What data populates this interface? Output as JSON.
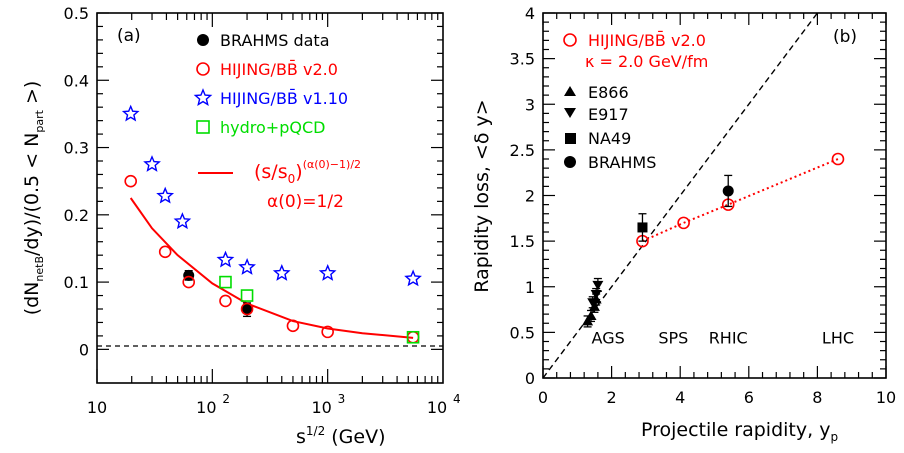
{
  "chart_data": [
    {
      "type": "scatter",
      "panel_label": "(a)",
      "xlabel": "s^{1/2} (GeV)",
      "xlabel_base": "s",
      "xlabel_sup": "1/2",
      "xlabel_unit": " (GeV)",
      "ylabel": "(dN_netB/dy)/(0.5 < N_part >)",
      "ylabel_parts": [
        "(dN",
        "netB",
        "/dy)/(0.5 < N",
        "part",
        " >)"
      ],
      "xscale": "log",
      "xlim": [
        10,
        10000
      ],
      "ylim": [
        -0.05,
        0.5
      ],
      "xticks": [
        {
          "value": 10,
          "base": "10",
          "exp": ""
        },
        {
          "value": 100,
          "base": "10",
          "exp": "2"
        },
        {
          "value": 1000,
          "base": "10",
          "exp": "3"
        },
        {
          "value": 10000,
          "base": "10",
          "exp": "4"
        }
      ],
      "yticks": [
        0,
        0.1,
        0.2,
        0.3,
        0.4,
        0.5
      ],
      "ytick_labels": [
        "0",
        "0.1",
        "0.2",
        "0.3",
        "0.4",
        "0.5"
      ],
      "reference_line_y": 0,
      "legend": {
        "placement": "top-right",
        "entries": [
          {
            "label": "BRAHMS data",
            "marker": "filled-circle",
            "color": "#000000"
          },
          {
            "label": "HIJING/BB̄ v2.0",
            "marker": "open-circle",
            "color": "#ff0000"
          },
          {
            "label": "HIJING/BB̄ v1.10",
            "marker": "open-star",
            "color": "#0000ff"
          },
          {
            "label": "hydro+pQCD",
            "marker": "open-square",
            "color": "#00dd00"
          }
        ]
      },
      "formula": {
        "main": "(s/s",
        "sub": "0",
        "close": ")",
        "exponent": "(α(0)−1)/2",
        "note": "α(0)=1/2",
        "color": "#ff0000"
      },
      "series": [
        {
          "name": "BRAHMS data",
          "marker": "filled-circle",
          "color": "#000000",
          "points": [
            {
              "x": 62.4,
              "y": 0.11,
              "err": 0.007
            },
            {
              "x": 200,
              "y": 0.059,
              "err": 0.01
            }
          ]
        },
        {
          "name": "HIJING/BB̄ v2.0",
          "marker": "open-circle",
          "color": "#ff0000",
          "points": [
            {
              "x": 19.6,
              "y": 0.25
            },
            {
              "x": 39,
              "y": 0.145
            },
            {
              "x": 62.4,
              "y": 0.1
            },
            {
              "x": 130,
              "y": 0.072
            },
            {
              "x": 200,
              "y": 0.06
            },
            {
              "x": 500,
              "y": 0.035
            },
            {
              "x": 1000,
              "y": 0.026
            },
            {
              "x": 5500,
              "y": 0.018
            }
          ]
        },
        {
          "name": "HIJING/BB̄ v1.10",
          "marker": "open-star",
          "color": "#0000ff",
          "points": [
            {
              "x": 19.6,
              "y": 0.35
            },
            {
              "x": 30,
              "y": 0.275
            },
            {
              "x": 39,
              "y": 0.228
            },
            {
              "x": 55,
              "y": 0.19
            },
            {
              "x": 130,
              "y": 0.133
            },
            {
              "x": 200,
              "y": 0.122
            },
            {
              "x": 400,
              "y": 0.113
            },
            {
              "x": 1000,
              "y": 0.113
            },
            {
              "x": 5500,
              "y": 0.105
            }
          ]
        },
        {
          "name": "hydro+pQCD",
          "marker": "open-square",
          "color": "#00dd00",
          "points": [
            {
              "x": 130,
              "y": 0.1
            },
            {
              "x": 200,
              "y": 0.08
            },
            {
              "x": 5500,
              "y": 0.018
            }
          ]
        },
        {
          "name": "(s/s0)^((α(0)−1)/2)",
          "style": "solid-line",
          "color": "#ff0000",
          "points": [
            {
              "x": 19.6,
              "y": 0.225
            },
            {
              "x": 30,
              "y": 0.18
            },
            {
              "x": 50,
              "y": 0.14
            },
            {
              "x": 100,
              "y": 0.098
            },
            {
              "x": 200,
              "y": 0.068
            },
            {
              "x": 500,
              "y": 0.042
            },
            {
              "x": 1000,
              "y": 0.031
            },
            {
              "x": 2000,
              "y": 0.024
            },
            {
              "x": 5500,
              "y": 0.017
            }
          ]
        }
      ]
    },
    {
      "type": "scatter",
      "panel_label": "(b)",
      "xlabel": "Projectile rapidity, y_p",
      "xlabel_main": "Projectile rapidity, y",
      "xlabel_sub": "p",
      "ylabel": "Rapidity loss, <δ y>",
      "xlim": [
        0,
        10
      ],
      "ylim": [
        0,
        4
      ],
      "xticks": [
        0,
        2,
        4,
        6,
        8,
        10
      ],
      "xtick_labels": [
        "0",
        "2",
        "4",
        "6",
        "8",
        "10"
      ],
      "yticks": [
        0,
        0.5,
        1,
        1.5,
        2,
        2.5,
        3,
        3.5,
        4
      ],
      "ytick_labels": [
        "0",
        "0.5",
        "1",
        "1.5",
        "2",
        "2.5",
        "3",
        "3.5",
        "4"
      ],
      "annotations": [
        {
          "text": "AGS",
          "x": 1.9,
          "y": 0.38
        },
        {
          "text": "SPS",
          "x": 3.8,
          "y": 0.38
        },
        {
          "text": "RHIC",
          "x": 5.4,
          "y": 0.38
        },
        {
          "text": "LHC",
          "x": 8.6,
          "y": 0.38
        }
      ],
      "legend": {
        "placement": "top-left",
        "entries": [
          {
            "label": "HIJING/BB̄ v2.0",
            "marker": "open-circle",
            "color": "#ff0000"
          },
          {
            "label": "κ = 2.0 GeV/fm",
            "marker": "none",
            "color": "#ff0000"
          },
          {
            "label": "E866",
            "marker": "filled-triangle-up",
            "color": "#000000"
          },
          {
            "label": "E917",
            "marker": "filled-triangle-down",
            "color": "#000000"
          },
          {
            "label": "NA49",
            "marker": "filled-square",
            "color": "#000000"
          },
          {
            "label": "BRAHMS",
            "marker": "filled-circle",
            "color": "#000000"
          }
        ]
      },
      "series": [
        {
          "name": "HIJING/BB̄ v2.0",
          "marker": "open-circle",
          "color": "#ff0000",
          "line": "dotted",
          "points": [
            {
              "x": 2.9,
              "y": 1.5
            },
            {
              "x": 4.1,
              "y": 1.7
            },
            {
              "x": 5.4,
              "y": 1.9
            },
            {
              "x": 8.6,
              "y": 2.4
            }
          ]
        },
        {
          "name": "E866",
          "marker": "filled-triangle-up",
          "color": "#000000",
          "points": [
            {
              "x": 1.3,
              "y": 0.62,
              "err": 0.06
            },
            {
              "x": 1.4,
              "y": 0.68,
              "err": 0.06
            },
            {
              "x": 1.5,
              "y": 0.78,
              "err": 0.06
            },
            {
              "x": 1.55,
              "y": 0.86,
              "err": 0.06
            }
          ]
        },
        {
          "name": "E917",
          "marker": "filled-triangle-down",
          "color": "#000000",
          "points": [
            {
              "x": 1.45,
              "y": 0.83,
              "err": 0.06
            },
            {
              "x": 1.55,
              "y": 0.92,
              "err": 0.06
            },
            {
              "x": 1.6,
              "y": 1.02,
              "err": 0.07
            }
          ]
        },
        {
          "name": "NA49",
          "marker": "filled-square",
          "color": "#000000",
          "points": [
            {
              "x": 2.9,
              "y": 1.65,
              "err": 0.15
            }
          ]
        },
        {
          "name": "BRAHMS",
          "marker": "filled-circle",
          "color": "#000000",
          "points": [
            {
              "x": 5.4,
              "y": 2.05,
              "err": 0.17
            }
          ]
        }
      ]
    }
  ]
}
